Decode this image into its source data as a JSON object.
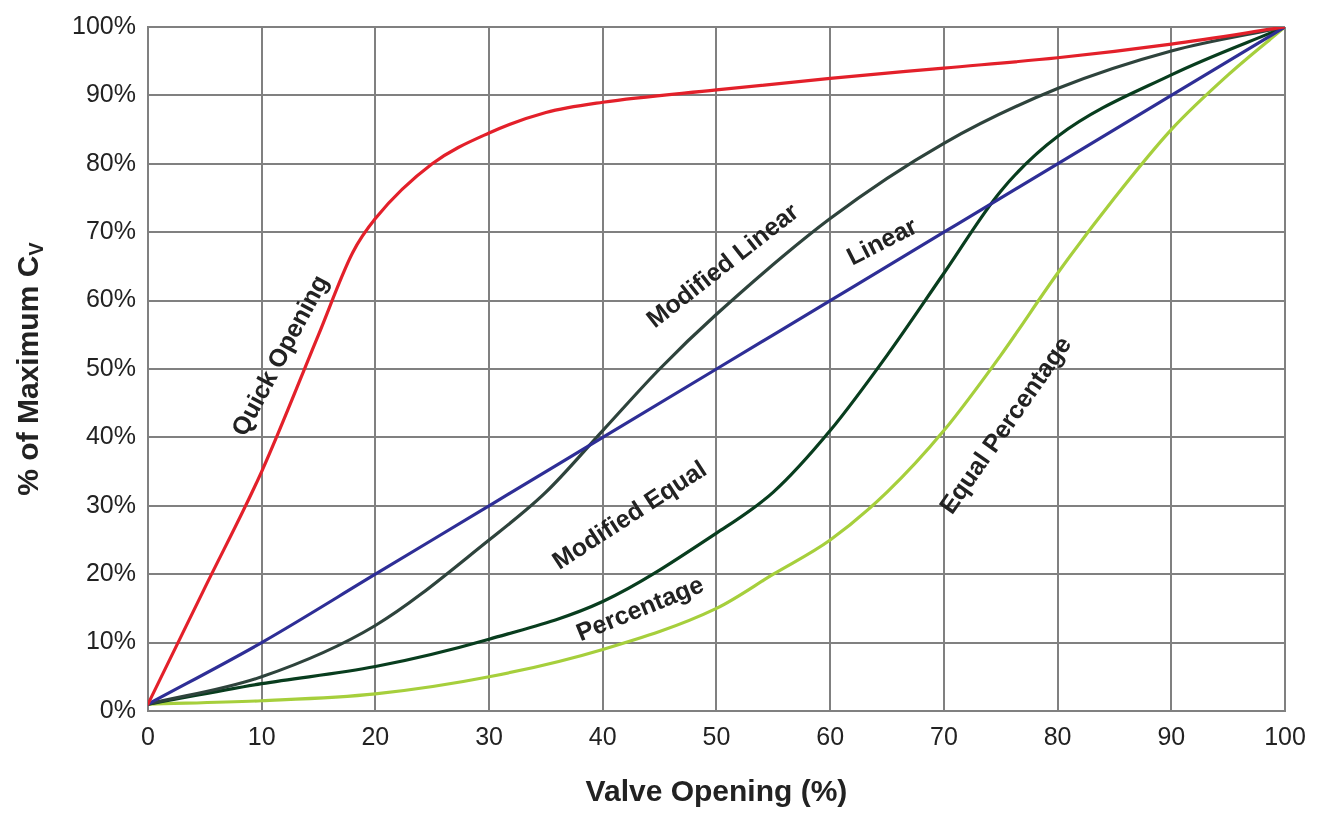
{
  "chart_data": {
    "type": "line",
    "xlabel": "Valve Opening (%)",
    "ylabel": "% of Maximum C$_{V}$",
    "xlim": [
      0,
      100
    ],
    "xticks": [
      0,
      10,
      20,
      30,
      40,
      50,
      60,
      70,
      80,
      90,
      100
    ],
    "ylim": [
      0,
      100
    ],
    "yticks": [
      {
        "value": 0,
        "label": "0%"
      },
      {
        "value": 10,
        "label": "10%"
      },
      {
        "value": 20,
        "label": "20%"
      },
      {
        "value": 30,
        "label": "30%"
      },
      {
        "value": 40,
        "label": "40%"
      },
      {
        "value": 50,
        "label": "50%"
      },
      {
        "value": 60,
        "label": "60%"
      },
      {
        "value": 70,
        "label": "70%"
      },
      {
        "value": 80,
        "label": "80%"
      },
      {
        "value": 90,
        "label": "90%"
      },
      {
        "value": 100,
        "label": "100%"
      }
    ],
    "grid": true,
    "legend": false,
    "marker": "none",
    "line_style": "solid",
    "series": [
      {
        "color": "#e3202a",
        "x": [
          0,
          5,
          10,
          15,
          18,
          20,
          25,
          30,
          35,
          40,
          50,
          60,
          70,
          80,
          90,
          100
        ],
        "values": [
          1,
          18,
          35,
          55,
          67,
          72,
          80,
          84.5,
          87.5,
          89,
          90.8,
          92.5,
          94,
          95.5,
          97.5,
          100
        ]
      },
      {
        "color": "#2e2e96",
        "x": [
          0,
          10,
          20,
          30,
          40,
          50,
          60,
          70,
          80,
          90,
          100
        ],
        "values": [
          1,
          10,
          20,
          30,
          40,
          50,
          60,
          70,
          80,
          90,
          100
        ]
      },
      {
        "color": "#2e433c",
        "x": [
          0,
          10,
          20,
          30,
          35,
          40,
          45,
          50,
          60,
          70,
          80,
          90,
          100
        ],
        "values": [
          1,
          5,
          12.5,
          25,
          32,
          41,
          50,
          58,
          72,
          83,
          91,
          96.5,
          100
        ]
      },
      {
        "color": "#083d1e",
        "x": [
          0,
          10,
          20,
          30,
          40,
          50,
          55,
          60,
          65,
          70,
          75,
          80,
          90,
          100
        ],
        "values": [
          1,
          4,
          6.5,
          10.5,
          16,
          26,
          32,
          41,
          52,
          64,
          76,
          84,
          93,
          100
        ]
      },
      {
        "color": "#a6cf3c",
        "x": [
          0,
          10,
          20,
          30,
          40,
          50,
          55,
          60,
          65,
          70,
          75,
          80,
          85,
          90,
          95,
          100
        ],
        "values": [
          1,
          1.5,
          2.5,
          5,
          9,
          15,
          20,
          25,
          32,
          41,
          52,
          64,
          75,
          85,
          93,
          100
        ]
      }
    ],
    "annotations": [
      "Quick Opening",
      "Modified Linear",
      "Linear",
      "Modified Equal",
      "Percentage",
      "Equal Percentage"
    ]
  }
}
